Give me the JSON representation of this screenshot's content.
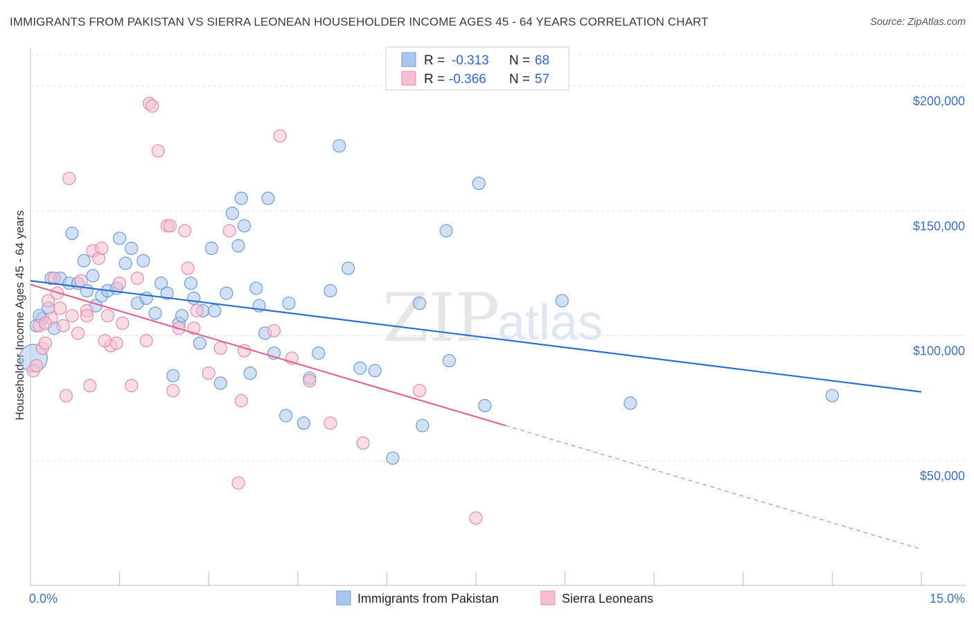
{
  "title": "IMMIGRANTS FROM PAKISTAN VS SIERRA LEONEAN HOUSEHOLDER INCOME AGES 45 - 64 YEARS CORRELATION CHART",
  "source": "Source: ZipAtlas.com",
  "watermark": {
    "zip": "ZIP",
    "atlas": "atlas"
  },
  "legend_top": {
    "r_label": "R =",
    "n_label": "N =",
    "entries": [
      {
        "r": "-0.313",
        "n": "68"
      },
      {
        "r": "-0.366",
        "n": "57"
      }
    ]
  },
  "chart_data": {
    "type": "scatter",
    "xlabel": "",
    "ylabel": "Householder Income Ages 45 - 64 years",
    "xlim": [
      0,
      15
    ],
    "ylim": [
      0,
      215000
    ],
    "x_tick_labels": [
      "0.0%",
      "15.0%"
    ],
    "y_ticks": [
      50000,
      100000,
      150000,
      200000
    ],
    "y_tick_labels": [
      "$50,000",
      "$100,000",
      "$150,000",
      "$200,000"
    ],
    "grid": true,
    "legend_placement": "top-center",
    "series": [
      {
        "name": "Immigrants from Pakistan",
        "color": "#a9c6ec",
        "stroke": "#6f9bd8",
        "trend_color": "#2a6fd0",
        "trend": {
          "x0": 0,
          "y0": 122000,
          "x1": 15,
          "y1": 77500
        },
        "points": [
          [
            0.05,
            91000
          ],
          [
            0.1,
            104000
          ],
          [
            0.2,
            107000
          ],
          [
            0.3,
            111000
          ],
          [
            0.35,
            123000
          ],
          [
            0.4,
            103000
          ],
          [
            0.5,
            123000
          ],
          [
            0.65,
            121000
          ],
          [
            0.7,
            141000
          ],
          [
            0.8,
            121000
          ],
          [
            0.9,
            130000
          ],
          [
            0.95,
            118000
          ],
          [
            1.05,
            124000
          ],
          [
            1.1,
            112000
          ],
          [
            1.2,
            116000
          ],
          [
            1.3,
            118000
          ],
          [
            1.45,
            119000
          ],
          [
            1.5,
            139000
          ],
          [
            1.6,
            129000
          ],
          [
            1.7,
            135000
          ],
          [
            1.8,
            113000
          ],
          [
            1.9,
            130000
          ],
          [
            1.95,
            115000
          ],
          [
            2.1,
            109000
          ],
          [
            2.2,
            121000
          ],
          [
            2.3,
            117000
          ],
          [
            2.4,
            84000
          ],
          [
            2.5,
            105000
          ],
          [
            2.55,
            108000
          ],
          [
            2.7,
            121000
          ],
          [
            2.75,
            115000
          ],
          [
            2.85,
            97000
          ],
          [
            2.9,
            110000
          ],
          [
            3.05,
            135000
          ],
          [
            3.1,
            110000
          ],
          [
            3.2,
            81000
          ],
          [
            3.3,
            117000
          ],
          [
            3.4,
            149000
          ],
          [
            3.5,
            136000
          ],
          [
            3.55,
            155000
          ],
          [
            3.6,
            144000
          ],
          [
            3.7,
            85000
          ],
          [
            3.8,
            119000
          ],
          [
            3.85,
            112000
          ],
          [
            3.95,
            101000
          ],
          [
            4.0,
            155000
          ],
          [
            4.1,
            93000
          ],
          [
            4.3,
            68000
          ],
          [
            4.35,
            113000
          ],
          [
            4.6,
            65000
          ],
          [
            4.7,
            83000
          ],
          [
            4.85,
            93000
          ],
          [
            5.05,
            118000
          ],
          [
            5.2,
            176000
          ],
          [
            5.35,
            127000
          ],
          [
            5.55,
            87000
          ],
          [
            5.8,
            86000
          ],
          [
            6.1,
            51000
          ],
          [
            6.55,
            113000
          ],
          [
            6.6,
            64000
          ],
          [
            7.0,
            142000
          ],
          [
            7.05,
            90000
          ],
          [
            7.55,
            161000
          ],
          [
            7.65,
            72000
          ],
          [
            8.95,
            114000
          ],
          [
            10.1,
            73000
          ],
          [
            13.5,
            76000
          ],
          [
            0.15,
            108000
          ]
        ]
      },
      {
        "name": "Sierra Leoneans",
        "color": "#f6bfd1",
        "stroke": "#e88aab",
        "trend_color": "#e06690",
        "trend": {
          "x0": 0,
          "y0": 120500,
          "x1": 8.0,
          "y1": 64000
        },
        "trend_dashed": {
          "x0": 8.0,
          "y0": 64000,
          "x1": 15,
          "y1": 14500
        },
        "points": [
          [
            0.05,
            86000
          ],
          [
            0.1,
            88000
          ],
          [
            0.15,
            104000
          ],
          [
            0.2,
            95000
          ],
          [
            0.25,
            97000
          ],
          [
            0.3,
            114000
          ],
          [
            0.35,
            107000
          ],
          [
            0.4,
            123000
          ],
          [
            0.45,
            117000
          ],
          [
            0.5,
            111000
          ],
          [
            0.55,
            104000
          ],
          [
            0.6,
            76000
          ],
          [
            0.65,
            163000
          ],
          [
            0.7,
            108000
          ],
          [
            0.8,
            101000
          ],
          [
            0.85,
            122000
          ],
          [
            0.95,
            110000
          ],
          [
            1.0,
            80000
          ],
          [
            1.05,
            134000
          ],
          [
            1.15,
            131000
          ],
          [
            1.2,
            135000
          ],
          [
            1.3,
            108000
          ],
          [
            1.35,
            96000
          ],
          [
            1.45,
            97000
          ],
          [
            1.5,
            121000
          ],
          [
            1.55,
            105000
          ],
          [
            1.7,
            80000
          ],
          [
            1.8,
            123000
          ],
          [
            1.95,
            98000
          ],
          [
            2.0,
            193000
          ],
          [
            2.05,
            192000
          ],
          [
            2.15,
            174000
          ],
          [
            2.3,
            144000
          ],
          [
            2.35,
            144000
          ],
          [
            2.4,
            78000
          ],
          [
            2.5,
            103000
          ],
          [
            2.6,
            142000
          ],
          [
            2.65,
            127000
          ],
          [
            2.75,
            103000
          ],
          [
            2.8,
            110000
          ],
          [
            3.0,
            85000
          ],
          [
            3.2,
            95000
          ],
          [
            3.35,
            142000
          ],
          [
            3.5,
            41000
          ],
          [
            3.55,
            74000
          ],
          [
            3.6,
            94000
          ],
          [
            4.1,
            102000
          ],
          [
            4.2,
            180000
          ],
          [
            4.4,
            91000
          ],
          [
            4.7,
            82000
          ],
          [
            5.05,
            65000
          ],
          [
            5.6,
            57000
          ],
          [
            6.55,
            78000
          ],
          [
            7.5,
            27000
          ],
          [
            0.25,
            105000
          ],
          [
            0.95,
            108000
          ],
          [
            1.25,
            98000
          ]
        ]
      }
    ]
  }
}
